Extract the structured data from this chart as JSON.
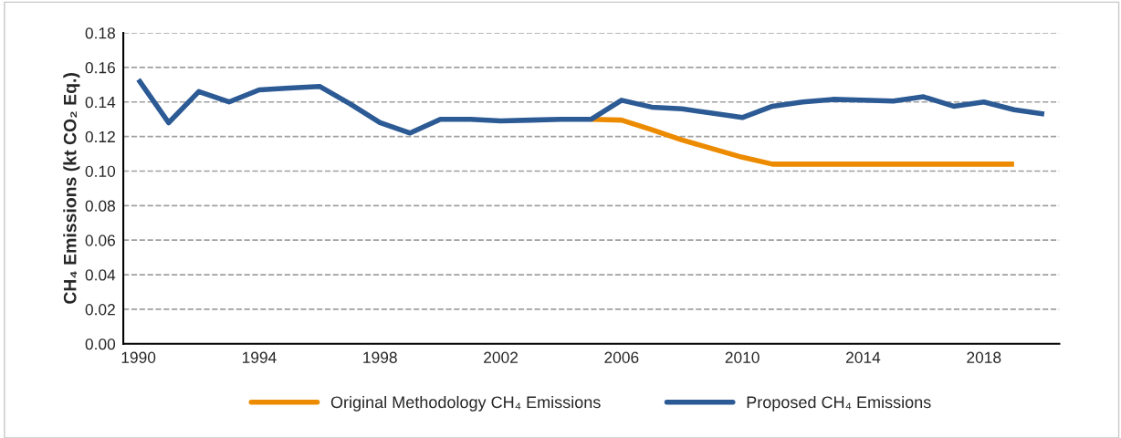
{
  "chart_data": {
    "type": "line",
    "ylabel": "CH₄ Emissions (kt CO₂ Eq.)",
    "x": [
      1990,
      1991,
      1992,
      1993,
      1994,
      1995,
      1996,
      1997,
      1998,
      1999,
      2000,
      2001,
      2002,
      2003,
      2004,
      2005,
      2006,
      2007,
      2008,
      2009,
      2010,
      2011,
      2012,
      2013,
      2014,
      2015,
      2016,
      2017,
      2018,
      2019,
      2020
    ],
    "series": [
      {
        "name": "Original Methodology CH₄ Emissions",
        "color": "#ed8b00",
        "values": [
          null,
          null,
          null,
          null,
          null,
          null,
          null,
          null,
          null,
          null,
          null,
          null,
          null,
          null,
          null,
          0.13,
          0.1295,
          0.124,
          0.118,
          0.113,
          0.108,
          0.104,
          0.104,
          0.104,
          0.104,
          0.104,
          0.104,
          0.104,
          0.104,
          0.104,
          null
        ]
      },
      {
        "name": "Proposed CH₄ Emissions",
        "color": "#2c5a94",
        "values": [
          0.153,
          0.128,
          0.146,
          0.14,
          0.147,
          0.148,
          0.149,
          0.139,
          0.128,
          0.122,
          0.13,
          0.13,
          0.129,
          0.1295,
          0.13,
          0.13,
          0.141,
          0.137,
          0.136,
          0.1335,
          0.131,
          0.1375,
          0.14,
          0.1415,
          0.141,
          0.1405,
          0.143,
          0.1375,
          0.14,
          0.1355,
          0.133
        ]
      }
    ],
    "xlim": [
      1989.5,
      2020.5
    ],
    "xticks": [
      1990,
      1994,
      1998,
      2002,
      2006,
      2010,
      2014,
      2018
    ],
    "ylim": [
      0,
      0.18
    ],
    "yticks": [
      {
        "value": 0,
        "label": "0.00"
      },
      {
        "value": 0.02,
        "label": "0.02"
      },
      {
        "value": 0.04,
        "label": "0.04"
      },
      {
        "value": 0.06,
        "label": "0.06"
      },
      {
        "value": 0.08,
        "label": "0.08"
      },
      {
        "value": 0.1,
        "label": "0.10"
      },
      {
        "value": 0.12,
        "label": "0.12"
      },
      {
        "value": 0.14,
        "label": "0.14"
      },
      {
        "value": 0.16,
        "label": "0.16"
      },
      {
        "value": 0.18,
        "label": "0.18"
      }
    ],
    "grid": "y",
    "legend": "bottom",
    "line_style": "solid"
  }
}
